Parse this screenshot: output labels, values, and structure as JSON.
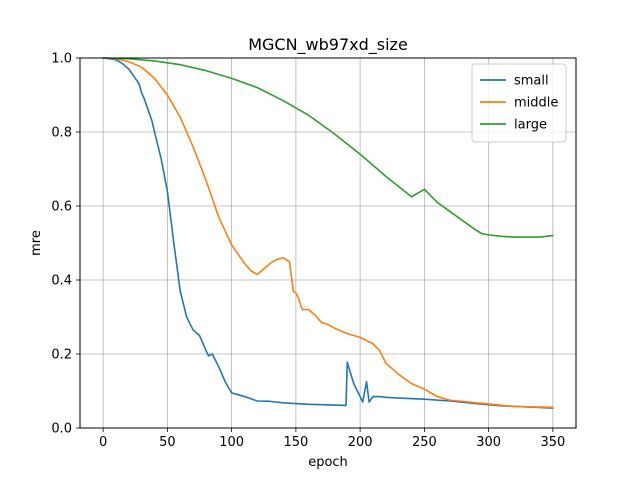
{
  "chart_data": {
    "type": "line",
    "title": "MGCN_wb97xd_size",
    "xlabel": "epoch",
    "ylabel": "mre",
    "xlim": [
      -18,
      368
    ],
    "ylim": [
      0.0,
      1.0
    ],
    "xticks": [
      0,
      50,
      100,
      150,
      200,
      250,
      300,
      350
    ],
    "yticks": [
      0.0,
      0.2,
      0.4,
      0.6,
      0.8,
      1.0
    ],
    "xtick_labels": [
      "0",
      "50",
      "100",
      "150",
      "200",
      "250",
      "300",
      "350"
    ],
    "ytick_labels": [
      "0.0",
      "0.2",
      "0.4",
      "0.6",
      "0.8",
      "1.0"
    ],
    "grid": true,
    "legend_position": "top-right",
    "series": [
      {
        "name": "small",
        "color": "#1f77b4",
        "x": [
          0,
          5,
          10,
          15,
          20,
          25,
          28,
          30,
          32,
          35,
          38,
          40,
          45,
          50,
          55,
          60,
          65,
          70,
          75,
          80,
          82,
          85,
          90,
          95,
          100,
          105,
          110,
          120,
          130,
          140,
          150,
          160,
          170,
          180,
          189,
          190,
          195,
          200,
          202,
          205,
          207,
          210,
          215,
          220,
          230,
          250,
          270,
          290,
          310,
          330,
          350
        ],
        "y": [
          1.0,
          0.998,
          0.995,
          0.985,
          0.97,
          0.945,
          0.93,
          0.905,
          0.89,
          0.86,
          0.83,
          0.8,
          0.73,
          0.64,
          0.5,
          0.37,
          0.3,
          0.265,
          0.25,
          0.21,
          0.195,
          0.2,
          0.165,
          0.125,
          0.095,
          0.09,
          0.085,
          0.073,
          0.072,
          0.068,
          0.066,
          0.064,
          0.063,
          0.062,
          0.061,
          0.178,
          0.12,
          0.085,
          0.07,
          0.125,
          0.07,
          0.085,
          0.085,
          0.083,
          0.081,
          0.078,
          0.073,
          0.066,
          0.06,
          0.057,
          0.054
        ]
      },
      {
        "name": "middle",
        "color": "#ff7f0e",
        "x": [
          0,
          10,
          20,
          30,
          40,
          50,
          60,
          70,
          80,
          90,
          100,
          110,
          115,
          120,
          125,
          130,
          135,
          140,
          145,
          148,
          150,
          152,
          155,
          158,
          160,
          165,
          170,
          175,
          180,
          190,
          200,
          210,
          215,
          218,
          220,
          225,
          230,
          240,
          250,
          260,
          270,
          280,
          290,
          300,
          320,
          350
        ],
        "y": [
          1.0,
          0.998,
          0.99,
          0.975,
          0.945,
          0.9,
          0.84,
          0.76,
          0.67,
          0.57,
          0.495,
          0.445,
          0.425,
          0.415,
          0.43,
          0.445,
          0.455,
          0.46,
          0.45,
          0.37,
          0.365,
          0.35,
          0.32,
          0.32,
          0.32,
          0.305,
          0.285,
          0.28,
          0.27,
          0.255,
          0.245,
          0.228,
          0.21,
          0.19,
          0.175,
          0.16,
          0.145,
          0.12,
          0.105,
          0.085,
          0.075,
          0.072,
          0.068,
          0.065,
          0.058,
          0.056
        ]
      },
      {
        "name": "large",
        "color": "#2ca02c",
        "x": [
          0,
          20,
          40,
          60,
          80,
          100,
          120,
          140,
          160,
          180,
          200,
          220,
          240,
          250,
          260,
          270,
          280,
          290,
          295,
          300,
          310,
          320,
          340,
          350
        ],
        "y": [
          1.0,
          0.998,
          0.992,
          0.982,
          0.966,
          0.945,
          0.92,
          0.885,
          0.845,
          0.795,
          0.74,
          0.68,
          0.625,
          0.645,
          0.61,
          0.585,
          0.56,
          0.535,
          0.525,
          0.522,
          0.518,
          0.516,
          0.516,
          0.52
        ]
      }
    ]
  }
}
